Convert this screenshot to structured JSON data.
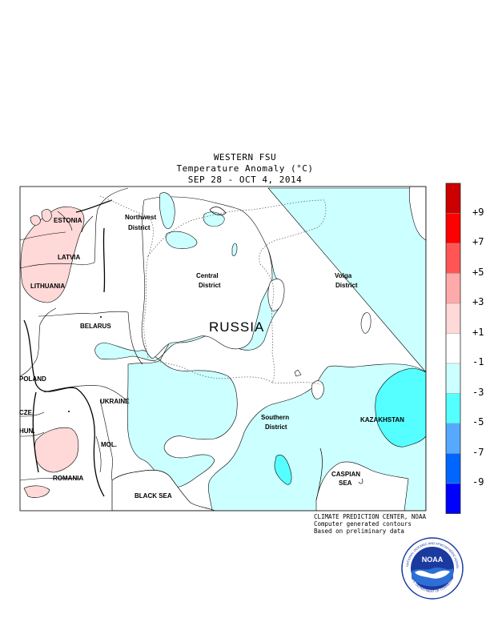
{
  "header": {
    "region": "WESTERN FSU",
    "variable": "Temperature Anomaly (°C)",
    "period": "SEP 28 - OCT 4, 2014"
  },
  "map_labels": {
    "estonia": "ESTONIA",
    "latvia": "LATVIA",
    "lithuania": "LITHUANIA",
    "belarus": "BELARUS",
    "poland": "POLAND",
    "ukraine": "UKRAINE",
    "cze": "CZE.",
    "hun": "HUN.",
    "mol": "MOL.",
    "romania": "ROMANIA",
    "black_sea": "BLACK SEA",
    "northwest_district": [
      "Northwest",
      "District"
    ],
    "central_district": [
      "Central",
      "District"
    ],
    "volga_district": [
      "Volga",
      "District"
    ],
    "southern_district": [
      "Southern",
      "District"
    ],
    "russia": "RUSSIA",
    "kazakhstan": "KAZAKHSTAN",
    "caspian_sea": [
      "CASPIAN",
      "SEA"
    ]
  },
  "legend": {
    "bins": [
      {
        "label": "+9",
        "color": "#cc0000"
      },
      {
        "label": "+7",
        "color": "#ff0000"
      },
      {
        "label": "+5",
        "color": "#ff5555"
      },
      {
        "label": "+3",
        "color": "#ffaaaa"
      },
      {
        "label": "+1",
        "color": "#ffd8d8"
      },
      {
        "label": "-1",
        "color": "#ffffff"
      },
      {
        "label": "-3",
        "color": "#ccffff"
      },
      {
        "label": "-5",
        "color": "#55ffff"
      },
      {
        "label": "-7",
        "color": "#55aaff"
      },
      {
        "label": "-9",
        "color": "#0066ff"
      },
      {
        "label": "",
        "color": "#0000ff"
      }
    ]
  },
  "credits": {
    "line1": "CLIMATE PREDICTION CENTER, NOAA",
    "line2": "Computer generated contours",
    "line3": "Based on preliminary data"
  },
  "logo": {
    "center_text": "NOAA",
    "ring_top": "NATIONAL OCEANIC AND ATMOSPHERIC ADMINISTRATION",
    "ring_bottom": "U.S. DEPARTMENT OF COMMERCE"
  }
}
